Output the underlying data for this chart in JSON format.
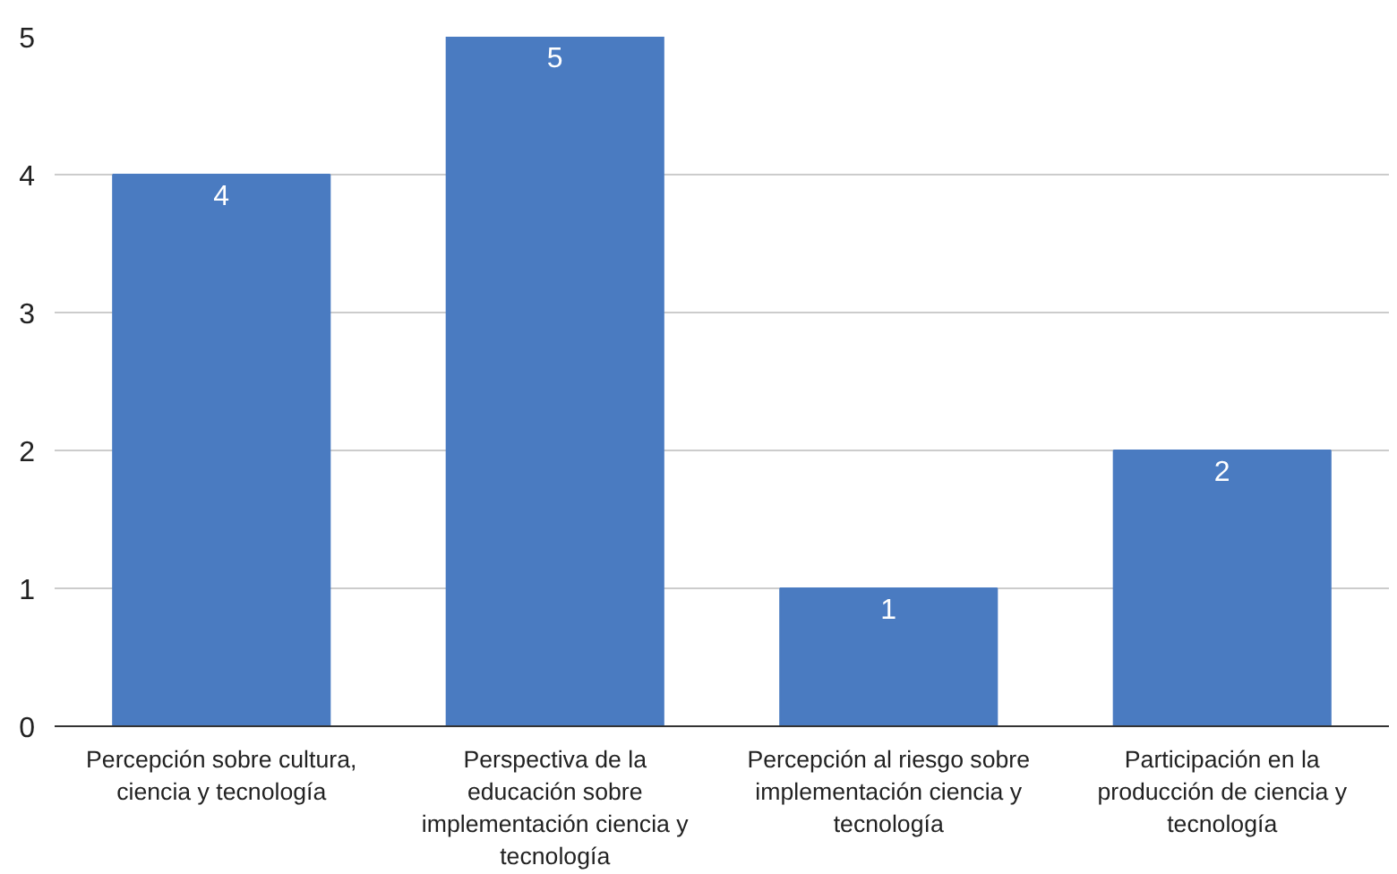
{
  "chart_data": {
    "type": "bar",
    "categories": [
      "Percepción sobre cultura, ciencia y tecnología",
      "Perspectiva de la educación sobre implementación ciencia y tecnología",
      "Percepción al riesgo sobre implementación ciencia y tecnología",
      "Participación en la producción de ciencia y tecnología"
    ],
    "values": [
      4,
      5,
      1,
      2
    ],
    "color": "#4a7bc1",
    "ylim": [
      0,
      5
    ],
    "yticks": [
      0,
      1,
      2,
      3,
      4,
      5
    ],
    "grid": "y",
    "data_labels": true
  }
}
